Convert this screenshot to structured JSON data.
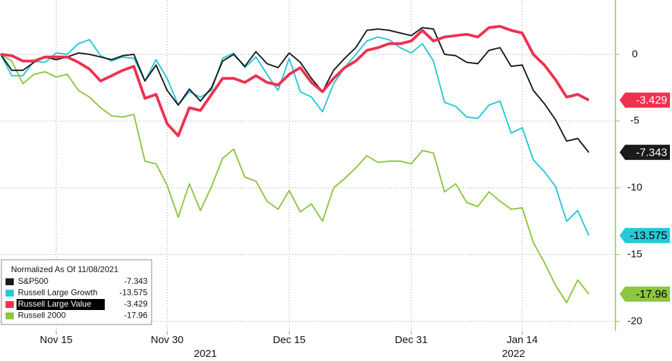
{
  "chart_data": {
    "type": "line",
    "legend_title": "Normalized As Of 11/08/2021",
    "categories": [
      null,
      null,
      null,
      null,
      null,
      "Nov 15",
      null,
      null,
      null,
      null,
      null,
      null,
      null,
      null,
      null,
      "Nov 30",
      null,
      null,
      null,
      null,
      null,
      null,
      null,
      null,
      null,
      null,
      "Dec 15",
      null,
      null,
      null,
      null,
      null,
      null,
      null,
      null,
      null,
      null,
      "Dec 31",
      null,
      null,
      null,
      null,
      null,
      null,
      null,
      null,
      null,
      "Jan 14",
      null,
      null,
      null,
      null,
      null,
      null
    ],
    "year_labels": [
      "2021",
      "2022"
    ],
    "series": [
      {
        "name": "S&P500",
        "color": "#1a1a1a",
        "values": [
          0,
          -1.2,
          -1.2,
          -0.6,
          -0.2,
          -0.4,
          -0.2,
          0.1,
          0.0,
          -0.2,
          -0.4,
          -0.1,
          0.0,
          -2.0,
          -0.8,
          -2.7,
          -3.8,
          -2.6,
          -3.5,
          -2.5,
          -0.5,
          0.0,
          -0.9,
          0.2,
          -0.7,
          -1.0,
          0.1,
          -0.6,
          -1.8,
          -2.8,
          -1.2,
          -0.3,
          0.5,
          1.8,
          1.9,
          1.8,
          1.6,
          1.4,
          2.0,
          1.9,
          0.0,
          -0.1,
          -0.6,
          -0.7,
          0.3,
          0.5,
          -0.9,
          -0.8,
          -2.7,
          -3.7,
          -4.9,
          -6.5,
          -6.3,
          -7.343
        ]
      },
      {
        "name": "Russell Large Growth",
        "color": "#27c8d6",
        "values": [
          0,
          -1.6,
          -1.6,
          -0.5,
          -0.6,
          0.1,
          0.0,
          0.8,
          1.1,
          -0.1,
          -0.5,
          -0.2,
          -0.3,
          -2.0,
          -0.4,
          -1.8,
          -3.8,
          -2.8,
          -3.2,
          -2.7,
          -0.3,
          0.1,
          -1.0,
          -0.2,
          -1.5,
          -2.7,
          -0.3,
          -2.8,
          -3.2,
          -4.3,
          -2.2,
          -1.0,
          0.0,
          1.0,
          1.3,
          1.1,
          0.5,
          0.1,
          0.8,
          -0.5,
          -3.6,
          -3.9,
          -4.7,
          -4.8,
          -3.8,
          -3.5,
          -5.9,
          -5.5,
          -7.9,
          -8.8,
          -9.9,
          -12.5,
          -11.7,
          -13.575
        ]
      },
      {
        "name": "Russell Large Value",
        "color": "#f0304f",
        "values": [
          0,
          -0.1,
          -0.5,
          -0.5,
          -0.2,
          -0.2,
          -0.2,
          -0.6,
          -1.1,
          -2.0,
          -1.6,
          -1.2,
          -0.9,
          -3.3,
          -3.0,
          -5.2,
          -6.1,
          -4.0,
          -4.2,
          -3.0,
          -1.8,
          -1.8,
          -2.1,
          -1.6,
          -2.1,
          -2.3,
          -1.5,
          -1.0,
          -2.1,
          -2.8,
          -1.8,
          -1.0,
          -0.5,
          0.3,
          0.5,
          0.8,
          0.8,
          1.0,
          1.8,
          1.0,
          1.3,
          1.4,
          1.5,
          1.3,
          2.0,
          2.1,
          1.8,
          1.6,
          0.0,
          -0.8,
          -1.9,
          -3.2,
          -3.0,
          -3.429
        ]
      },
      {
        "name": "Russell 2000",
        "color": "#8dc63f",
        "values": [
          0,
          -0.5,
          -2.2,
          -1.5,
          -1.3,
          -1.7,
          -1.5,
          -2.7,
          -3.2,
          -4.0,
          -4.6,
          -4.7,
          -4.5,
          -8.0,
          -8.2,
          -9.8,
          -12.2,
          -9.7,
          -11.7,
          -9.9,
          -7.8,
          -7.1,
          -9.2,
          -9.5,
          -11.0,
          -11.6,
          -10.2,
          -11.8,
          -11.2,
          -12.5,
          -10.0,
          -9.3,
          -8.5,
          -7.6,
          -8.1,
          -8.0,
          -8.0,
          -8.2,
          -7.2,
          -7.4,
          -10.3,
          -9.7,
          -11.1,
          -11.4,
          -10.3,
          -11.0,
          -11.6,
          -11.5,
          -14.1,
          -15.6,
          -17.3,
          -18.6,
          -16.9,
          -17.96
        ]
      }
    ],
    "highlighted_series": 2,
    "ylim": [
      -20.7,
      4.07
    ],
    "yticks": [
      0,
      -5,
      -10,
      -15,
      -20
    ],
    "grid": true
  }
}
